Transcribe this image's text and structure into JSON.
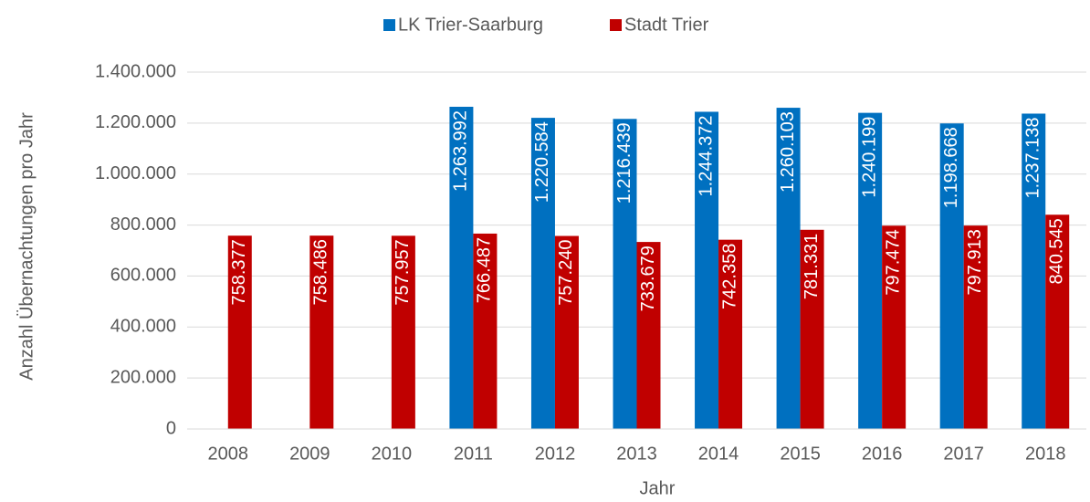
{
  "chart_data": {
    "type": "bar",
    "x_label": "Jahr",
    "y_label": "Anzahl Übernachtungen pro Jahr",
    "categories": [
      "2008",
      "2009",
      "2010",
      "2011",
      "2012",
      "2013",
      "2014",
      "2015",
      "2016",
      "2017",
      "2018"
    ],
    "series": [
      {
        "name": "LK Trier-Saarburg",
        "color": "#0070c0",
        "values": [
          null,
          null,
          null,
          1263992,
          1220584,
          1216439,
          1244372,
          1260103,
          1240199,
          1198668,
          1237138
        ],
        "value_labels": [
          null,
          null,
          null,
          "1.263.992",
          "1.220.584",
          "1.216.439",
          "1.244.372",
          "1.260.103",
          "1.240.199",
          "1.198.668",
          "1.237.138"
        ]
      },
      {
        "name": "Stadt Trier",
        "color": "#c00000",
        "values": [
          758377,
          758486,
          757957,
          766487,
          757240,
          733679,
          742358,
          781331,
          797474,
          797913,
          840545
        ],
        "value_labels": [
          "758.377",
          "758.486",
          "757.957",
          "766.487",
          "757.240",
          "733.679",
          "742.358",
          "781.331",
          "797.474",
          "797.913",
          "840.545"
        ]
      }
    ],
    "ylim": [
      0,
      1400000
    ],
    "yticks": [
      0,
      {
        "value": 200000,
        "label": "200.000"
      },
      {
        "value": 400000,
        "label": "400.000"
      },
      {
        "value": 600000,
        "label": "600.000"
      },
      {
        "value": 800000,
        "label": "800.000"
      },
      {
        "value": 1000000,
        "label": "1.000.000"
      },
      {
        "value": 1200000,
        "label": "1.200.000"
      },
      {
        "value": 1400000,
        "label": "1.400.000"
      }
    ],
    "grid": true,
    "legend": "top"
  }
}
